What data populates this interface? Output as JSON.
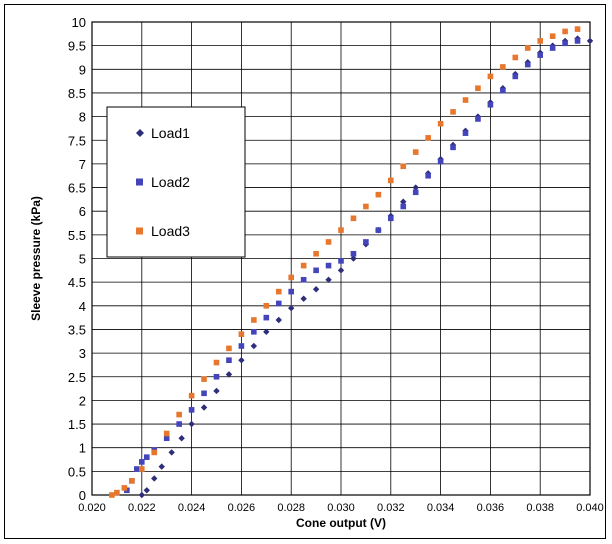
{
  "chart_data": {
    "type": "scatter",
    "title": "",
    "xlabel": "Cone output (V)",
    "ylabel": "Sleeve pressure (kPa)",
    "xlim": [
      0.02,
      0.04
    ],
    "ylim": [
      0,
      10
    ],
    "x_ticks": [
      "0.020",
      "0.022",
      "0.024",
      "0.026",
      "0.028",
      "0.030",
      "0.032",
      "0.034",
      "0.036",
      "0.038",
      "0.040"
    ],
    "y_ticks": [
      "0",
      "0.5",
      "1",
      "1.5",
      "2",
      "2.5",
      "3",
      "3.5",
      "4",
      "4.5",
      "5",
      "5.5",
      "6",
      "6.5",
      "7",
      "7.5",
      "8",
      "8.5",
      "9",
      "9.5",
      "10"
    ],
    "grid": true,
    "legend_position": "upper-left",
    "series": [
      {
        "name": "Load1",
        "color": "#2e2e7a",
        "marker": "diamond",
        "points": [
          [
            0.022,
            0.0
          ],
          [
            0.0222,
            0.1
          ],
          [
            0.0225,
            0.35
          ],
          [
            0.0228,
            0.6
          ],
          [
            0.0232,
            0.9
          ],
          [
            0.0236,
            1.2
          ],
          [
            0.024,
            1.5
          ],
          [
            0.0245,
            1.85
          ],
          [
            0.025,
            2.2
          ],
          [
            0.0255,
            2.55
          ],
          [
            0.026,
            2.85
          ],
          [
            0.0265,
            3.15
          ],
          [
            0.027,
            3.45
          ],
          [
            0.0275,
            3.7
          ],
          [
            0.028,
            3.95
          ],
          [
            0.0285,
            4.15
          ],
          [
            0.029,
            4.35
          ],
          [
            0.0295,
            4.55
          ],
          [
            0.03,
            4.75
          ],
          [
            0.0305,
            5.0
          ],
          [
            0.031,
            5.3
          ],
          [
            0.0315,
            5.6
          ],
          [
            0.032,
            5.9
          ],
          [
            0.0325,
            6.2
          ],
          [
            0.033,
            6.5
          ],
          [
            0.0335,
            6.8
          ],
          [
            0.034,
            7.1
          ],
          [
            0.0345,
            7.4
          ],
          [
            0.035,
            7.7
          ],
          [
            0.0355,
            8.0
          ],
          [
            0.036,
            8.3
          ],
          [
            0.0365,
            8.6
          ],
          [
            0.037,
            8.9
          ],
          [
            0.0375,
            9.15
          ],
          [
            0.038,
            9.35
          ],
          [
            0.0385,
            9.5
          ],
          [
            0.039,
            9.6
          ],
          [
            0.0395,
            9.65
          ],
          [
            0.04,
            9.6
          ]
        ]
      },
      {
        "name": "Load2",
        "color": "#4444bb",
        "marker": "square",
        "points": [
          [
            0.0214,
            0.1
          ],
          [
            0.0216,
            0.3
          ],
          [
            0.0218,
            0.55
          ],
          [
            0.022,
            0.7
          ],
          [
            0.0222,
            0.8
          ],
          [
            0.0225,
            0.95
          ],
          [
            0.023,
            1.2
          ],
          [
            0.0235,
            1.5
          ],
          [
            0.024,
            1.8
          ],
          [
            0.0245,
            2.15
          ],
          [
            0.025,
            2.5
          ],
          [
            0.0255,
            2.85
          ],
          [
            0.026,
            3.15
          ],
          [
            0.0265,
            3.45
          ],
          [
            0.027,
            3.75
          ],
          [
            0.0275,
            4.05
          ],
          [
            0.028,
            4.3
          ],
          [
            0.0285,
            4.55
          ],
          [
            0.029,
            4.75
          ],
          [
            0.0295,
            4.85
          ],
          [
            0.03,
            4.95
          ],
          [
            0.0305,
            5.1
          ],
          [
            0.031,
            5.35
          ],
          [
            0.0315,
            5.6
          ],
          [
            0.032,
            5.85
          ],
          [
            0.0325,
            6.1
          ],
          [
            0.033,
            6.4
          ],
          [
            0.0335,
            6.75
          ],
          [
            0.034,
            7.05
          ],
          [
            0.0345,
            7.35
          ],
          [
            0.035,
            7.65
          ],
          [
            0.0355,
            7.95
          ],
          [
            0.036,
            8.25
          ],
          [
            0.0365,
            8.55
          ],
          [
            0.037,
            8.85
          ],
          [
            0.0375,
            9.1
          ],
          [
            0.038,
            9.3
          ],
          [
            0.0385,
            9.45
          ],
          [
            0.039,
            9.55
          ],
          [
            0.0395,
            9.6
          ]
        ]
      },
      {
        "name": "Load3",
        "color": "#e8772e",
        "marker": "square",
        "points": [
          [
            0.0208,
            0.0
          ],
          [
            0.021,
            0.05
          ],
          [
            0.0213,
            0.15
          ],
          [
            0.0216,
            0.3
          ],
          [
            0.022,
            0.55
          ],
          [
            0.0225,
            0.9
          ],
          [
            0.023,
            1.3
          ],
          [
            0.0235,
            1.7
          ],
          [
            0.024,
            2.1
          ],
          [
            0.0245,
            2.45
          ],
          [
            0.025,
            2.8
          ],
          [
            0.0255,
            3.1
          ],
          [
            0.026,
            3.4
          ],
          [
            0.0265,
            3.7
          ],
          [
            0.027,
            4.0
          ],
          [
            0.0275,
            4.3
          ],
          [
            0.028,
            4.6
          ],
          [
            0.0285,
            4.85
          ],
          [
            0.029,
            5.1
          ],
          [
            0.0295,
            5.35
          ],
          [
            0.03,
            5.6
          ],
          [
            0.0305,
            5.85
          ],
          [
            0.031,
            6.1
          ],
          [
            0.0315,
            6.35
          ],
          [
            0.032,
            6.65
          ],
          [
            0.0325,
            6.95
          ],
          [
            0.033,
            7.25
          ],
          [
            0.0335,
            7.55
          ],
          [
            0.034,
            7.85
          ],
          [
            0.0345,
            8.1
          ],
          [
            0.035,
            8.35
          ],
          [
            0.0355,
            8.6
          ],
          [
            0.036,
            8.85
          ],
          [
            0.0365,
            9.05
          ],
          [
            0.037,
            9.25
          ],
          [
            0.0375,
            9.45
          ],
          [
            0.038,
            9.6
          ],
          [
            0.0385,
            9.7
          ],
          [
            0.039,
            9.8
          ],
          [
            0.0395,
            9.85
          ]
        ]
      }
    ]
  }
}
